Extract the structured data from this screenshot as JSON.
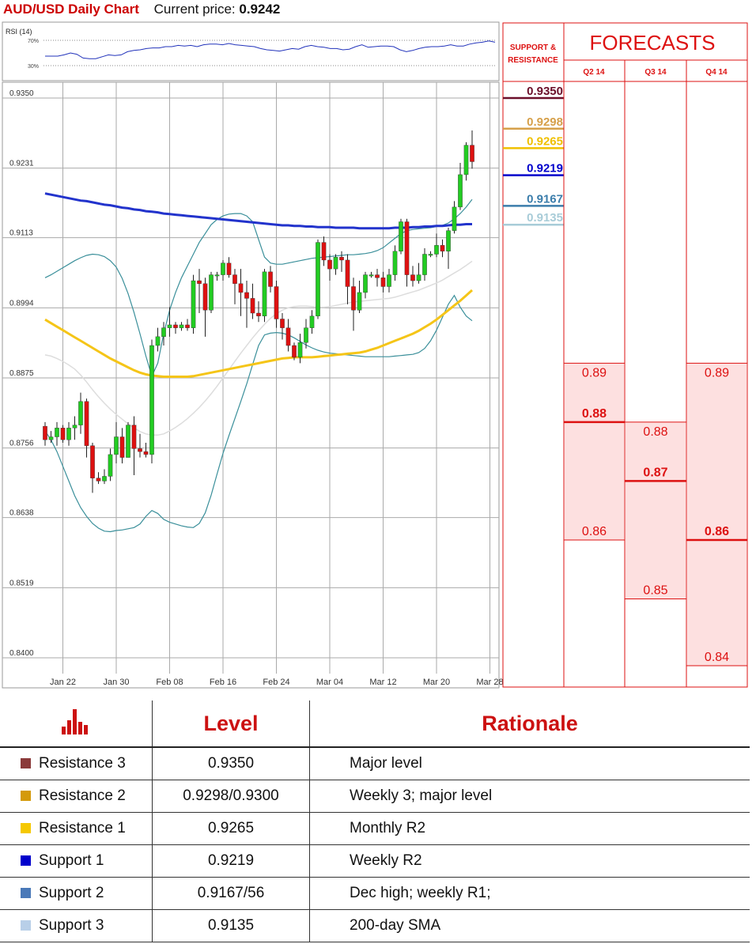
{
  "header": {
    "title": "AUD/USD Daily Chart",
    "price_label": "Current price:",
    "price_value": "0.9242"
  },
  "rsi": {
    "label": "RSI (14)",
    "upper": "70%",
    "lower": "30%",
    "values": [
      45,
      45,
      45,
      47,
      50,
      48,
      42,
      41,
      41,
      44,
      47,
      46,
      47,
      52,
      54,
      55,
      57,
      58,
      58,
      60,
      60,
      62,
      61,
      62,
      60,
      63,
      64,
      64,
      63,
      65,
      63,
      62,
      61,
      60,
      57,
      55,
      54,
      53,
      55,
      57,
      56,
      60,
      62,
      60,
      59,
      57,
      57,
      55,
      56,
      60,
      63,
      59,
      60,
      61,
      61,
      60,
      55,
      52,
      54,
      57,
      59,
      60,
      60,
      61,
      63,
      61,
      61,
      64,
      66,
      67,
      69,
      67
    ]
  },
  "chart_data": {
    "type": "candlestick",
    "title": "AUD/USD Daily Chart",
    "xlabel": "",
    "ylabel": "",
    "ylim": [
      0.84,
      0.935
    ],
    "y_ticks": [
      "0.9350",
      "0.9231",
      "0.9113",
      "0.8994",
      "0.8875",
      "0.8756",
      "0.8638",
      "0.8519",
      "0.8400"
    ],
    "x_ticks": [
      "Jan 22",
      "Jan 30",
      "Feb 08",
      "Feb 16",
      "Feb 24",
      "Mar 04",
      "Mar 12",
      "Mar 20",
      "Mar 28"
    ],
    "x_tick_index": [
      3,
      12,
      21,
      30,
      39,
      48,
      57,
      66,
      75
    ],
    "grid": true,
    "candles": [
      [
        0.8793,
        0.877,
        0.88,
        0.876
      ],
      [
        0.877,
        0.8775,
        0.8785,
        0.8765
      ],
      [
        0.8775,
        0.879,
        0.88,
        0.876
      ],
      [
        0.879,
        0.877,
        0.8795,
        0.8765
      ],
      [
        0.877,
        0.879,
        0.88,
        0.876
      ],
      [
        0.879,
        0.8795,
        0.881,
        0.877
      ],
      [
        0.8795,
        0.8835,
        0.885,
        0.878
      ],
      [
        0.8835,
        0.876,
        0.884,
        0.874
      ],
      [
        0.876,
        0.8705,
        0.8765,
        0.868
      ],
      [
        0.8705,
        0.87,
        0.8715,
        0.8695
      ],
      [
        0.87,
        0.8708,
        0.872,
        0.8695
      ],
      [
        0.8708,
        0.8745,
        0.8755,
        0.87
      ],
      [
        0.8745,
        0.8775,
        0.88,
        0.873
      ],
      [
        0.8775,
        0.874,
        0.879,
        0.873
      ],
      [
        0.874,
        0.8795,
        0.88,
        0.874
      ],
      [
        0.8795,
        0.8755,
        0.881,
        0.871
      ],
      [
        0.8755,
        0.875,
        0.878,
        0.874
      ],
      [
        0.875,
        0.8745,
        0.8765,
        0.874
      ],
      [
        0.8745,
        0.893,
        0.894,
        0.873
      ],
      [
        0.893,
        0.8945,
        0.896,
        0.892
      ],
      [
        0.8945,
        0.896,
        0.897,
        0.893
      ],
      [
        0.896,
        0.8965,
        0.8995,
        0.8945
      ],
      [
        0.8965,
        0.896,
        0.897,
        0.895
      ],
      [
        0.896,
        0.8965,
        0.897,
        0.8955
      ],
      [
        0.8965,
        0.896,
        0.8975,
        0.8955
      ],
      [
        0.896,
        0.904,
        0.905,
        0.895
      ],
      [
        0.904,
        0.9035,
        0.906,
        0.8985
      ],
      [
        0.9035,
        0.899,
        0.9045,
        0.8945
      ],
      [
        0.899,
        0.905,
        0.9055,
        0.8985
      ],
      [
        0.905,
        0.905,
        0.9055,
        0.904
      ],
      [
        0.905,
        0.907,
        0.9075,
        0.904
      ],
      [
        0.907,
        0.905,
        0.908,
        0.9045
      ],
      [
        0.905,
        0.9035,
        0.906,
        0.9
      ],
      [
        0.9035,
        0.902,
        0.906,
        0.898
      ],
      [
        0.902,
        0.901,
        0.904,
        0.896
      ],
      [
        0.901,
        0.8985,
        0.9035,
        0.8975
      ],
      [
        0.8985,
        0.898,
        0.9005,
        0.897
      ],
      [
        0.898,
        0.9055,
        0.906,
        0.897
      ],
      [
        0.9055,
        0.903,
        0.9065,
        0.902
      ],
      [
        0.903,
        0.8975,
        0.904,
        0.896
      ],
      [
        0.8975,
        0.896,
        0.8985,
        0.894
      ],
      [
        0.896,
        0.893,
        0.8975,
        0.892
      ],
      [
        0.893,
        0.891,
        0.8935,
        0.8905
      ],
      [
        0.891,
        0.8935,
        0.895,
        0.89
      ],
      [
        0.8935,
        0.896,
        0.8975,
        0.8925
      ],
      [
        0.896,
        0.898,
        0.899,
        0.895
      ],
      [
        0.898,
        0.9105,
        0.911,
        0.8975
      ],
      [
        0.9105,
        0.9075,
        0.9115,
        0.9065
      ],
      [
        0.9075,
        0.906,
        0.9085,
        0.904
      ],
      [
        0.906,
        0.908,
        0.9085,
        0.905
      ],
      [
        0.908,
        0.9075,
        0.909,
        0.9055
      ],
      [
        0.9075,
        0.903,
        0.9085,
        0.9
      ],
      [
        0.903,
        0.899,
        0.9045,
        0.8955
      ],
      [
        0.899,
        0.902,
        0.904,
        0.8985
      ],
      [
        0.902,
        0.905,
        0.9055,
        0.901
      ],
      [
        0.905,
        0.905,
        0.9055,
        0.9045
      ],
      [
        0.905,
        0.9045,
        0.906,
        0.903
      ],
      [
        0.9045,
        0.903,
        0.9055,
        0.902
      ],
      [
        0.903,
        0.905,
        0.906,
        0.902
      ],
      [
        0.905,
        0.909,
        0.91,
        0.904
      ],
      [
        0.909,
        0.914,
        0.9145,
        0.9085
      ],
      [
        0.914,
        0.905,
        0.9145,
        0.903
      ],
      [
        0.905,
        0.904,
        0.9065,
        0.903
      ],
      [
        0.904,
        0.905,
        0.907,
        0.9035
      ],
      [
        0.905,
        0.9085,
        0.9095,
        0.904
      ],
      [
        0.9085,
        0.9085,
        0.909,
        0.908
      ],
      [
        0.9085,
        0.91,
        0.912,
        0.908
      ],
      [
        0.91,
        0.909,
        0.911,
        0.908
      ],
      [
        0.909,
        0.9125,
        0.913,
        0.906
      ],
      [
        0.9125,
        0.9165,
        0.9175,
        0.912
      ],
      [
        0.9165,
        0.922,
        0.924,
        0.916
      ],
      [
        0.922,
        0.927,
        0.9275,
        0.921
      ],
      [
        0.927,
        0.9242,
        0.9295,
        0.923
      ]
    ],
    "sma_200": [
      0.9188,
      0.9186,
      0.9184,
      0.9182,
      0.918,
      0.9178,
      0.9176,
      0.9175,
      0.9173,
      0.9171,
      0.9169,
      0.9168,
      0.9166,
      0.9164,
      0.9163,
      0.9161,
      0.916,
      0.9158,
      0.9157,
      0.9156,
      0.9154,
      0.9153,
      0.9152,
      0.9151,
      0.915,
      0.9149,
      0.9148,
      0.9147,
      0.9146,
      0.9145,
      0.9144,
      0.9143,
      0.9142,
      0.9141,
      0.914,
      0.9139,
      0.9138,
      0.9137,
      0.9136,
      0.9135,
      0.9134,
      0.9134,
      0.9133,
      0.9133,
      0.9132,
      0.9132,
      0.9131,
      0.9131,
      0.9131,
      0.913,
      0.913,
      0.913,
      0.913,
      0.9129,
      0.9129,
      0.9129,
      0.9129,
      0.9129,
      0.9129,
      0.913,
      0.913,
      0.913,
      0.9131,
      0.9131,
      0.9132,
      0.9132,
      0.9133,
      0.9133,
      0.9134,
      0.9135,
      0.9135,
      0.9136,
      0.9136
    ],
    "sma_55": [
      0.8974,
      0.8968,
      0.8962,
      0.8956,
      0.895,
      0.8944,
      0.8938,
      0.8932,
      0.8926,
      0.892,
      0.8914,
      0.8908,
      0.8903,
      0.8898,
      0.8893,
      0.8888,
      0.8884,
      0.8881,
      0.8879,
      0.8878,
      0.8877,
      0.8877,
      0.8877,
      0.8877,
      0.8877,
      0.8878,
      0.888,
      0.8882,
      0.8884,
      0.8886,
      0.8888,
      0.889,
      0.8892,
      0.8894,
      0.8896,
      0.8898,
      0.89,
      0.8902,
      0.8904,
      0.8906,
      0.8908,
      0.8909,
      0.891,
      0.891,
      0.891,
      0.891,
      0.8911,
      0.8912,
      0.8913,
      0.8914,
      0.8915,
      0.8916,
      0.8917,
      0.8918,
      0.892,
      0.8923,
      0.8926,
      0.893,
      0.8934,
      0.8938,
      0.8942,
      0.8946,
      0.895,
      0.8955,
      0.8961,
      0.8967,
      0.8974,
      0.8982,
      0.899,
      0.8998,
      0.9006,
      0.9015,
      0.9024
    ],
    "sma_20": [
      0.8914,
      0.8912,
      0.8908,
      0.8903,
      0.8897,
      0.889,
      0.888,
      0.8868,
      0.8855,
      0.8843,
      0.8832,
      0.8822,
      0.8813,
      0.8805,
      0.8797,
      0.879,
      0.8784,
      0.878,
      0.8778,
      0.8778,
      0.878,
      0.8785,
      0.8791,
      0.8798,
      0.8806,
      0.8815,
      0.8825,
      0.8836,
      0.8848,
      0.8861,
      0.8875,
      0.8889,
      0.8903,
      0.8917,
      0.893,
      0.8943,
      0.8955,
      0.8966,
      0.8976,
      0.8984,
      0.899,
      0.8994,
      0.8996,
      0.8997,
      0.8997,
      0.8996,
      0.8995,
      0.8995,
      0.8996,
      0.8998,
      0.9,
      0.9002,
      0.9004,
      0.9005,
      0.9006,
      0.9007,
      0.9008,
      0.9009,
      0.901,
      0.9012,
      0.9015,
      0.9018,
      0.9021,
      0.9024,
      0.9028,
      0.9032,
      0.9036,
      0.9041,
      0.9047,
      0.9053,
      0.9059,
      0.9066,
      0.9073
    ],
    "bb_upper": [
      0.9045,
      0.905,
      0.9056,
      0.9062,
      0.9068,
      0.9074,
      0.9079,
      0.9083,
      0.9085,
      0.9084,
      0.9081,
      0.9074,
      0.9063,
      0.9044,
      0.9018,
      0.8986,
      0.895,
      0.8912,
      0.8878,
      0.89,
      0.895,
      0.899,
      0.902,
      0.9045,
      0.9065,
      0.9085,
      0.9105,
      0.912,
      0.9135,
      0.9144,
      0.915,
      0.9153,
      0.9154,
      0.9154,
      0.915,
      0.914,
      0.911,
      0.908,
      0.907,
      0.9068,
      0.9068,
      0.907,
      0.9072,
      0.9074,
      0.9076,
      0.9078,
      0.9079,
      0.908,
      0.9081,
      0.9082,
      0.9083,
      0.9084,
      0.9084,
      0.9085,
      0.9086,
      0.9088,
      0.9091,
      0.9096,
      0.9104,
      0.9112,
      0.912,
      0.9125,
      0.9127,
      0.9128,
      0.9129,
      0.913,
      0.9132,
      0.9134,
      0.9138,
      0.9145,
      0.9154,
      0.9165,
      0.9178
    ],
    "bb_lower": [
      0.8785,
      0.877,
      0.875,
      0.8725,
      0.87,
      0.8675,
      0.8655,
      0.864,
      0.8628,
      0.862,
      0.8615,
      0.8614,
      0.8616,
      0.8617,
      0.8619,
      0.8621,
      0.8627,
      0.864,
      0.865,
      0.8645,
      0.8635,
      0.863,
      0.8627,
      0.8624,
      0.8622,
      0.8621,
      0.8628,
      0.8646,
      0.8676,
      0.8712,
      0.8747,
      0.8777,
      0.8806,
      0.8835,
      0.8865,
      0.8898,
      0.893,
      0.8948,
      0.8951,
      0.8952,
      0.8951,
      0.8948,
      0.8943,
      0.8937,
      0.8931,
      0.8926,
      0.8922,
      0.8919,
      0.8917,
      0.8916,
      0.8915,
      0.8914,
      0.8913,
      0.8912,
      0.8911,
      0.8911,
      0.8911,
      0.8911,
      0.8911,
      0.8912,
      0.8913,
      0.8914,
      0.8915,
      0.8918,
      0.8925,
      0.8938,
      0.8956,
      0.8978,
      0.9,
      0.9015,
      0.8995,
      0.898,
      0.8972
    ]
  },
  "support_resistance": {
    "title_line1": "SUPPORT &",
    "title_line2": "RESISTANCE",
    "levels": [
      {
        "label": "0.9350",
        "color": "#6b0f2a",
        "value": 0.935
      },
      {
        "label": "0.9298",
        "color": "#d6a04a",
        "value": 0.9298
      },
      {
        "label": "0.9265",
        "color": "#f0c000",
        "value": 0.9265
      },
      {
        "label": "0.9219",
        "color": "#0000cc",
        "value": 0.9219
      },
      {
        "label": "0.9167",
        "color": "#3b7dab",
        "value": 0.9167
      },
      {
        "label": "0.9135",
        "color": "#a8ccd8",
        "value": 0.9135
      }
    ]
  },
  "forecasts": {
    "title": "FORECASTS",
    "columns": [
      {
        "label": "Q2 14",
        "high": "0.89",
        "mid": "0.88",
        "low": "0.86",
        "high_v": 0.89,
        "mid_v": 0.88,
        "low_v": 0.86,
        "bottom_v": 0.84
      },
      {
        "label": "Q3 14",
        "high": "0.88",
        "mid": "0.87",
        "low": "0.85",
        "high_v": 0.88,
        "mid_v": 0.87,
        "low_v": 0.85,
        "bottom_v": 0.84
      },
      {
        "label": "Q4 14",
        "high": "0.89",
        "mid": "0.86",
        "low": "0.84",
        "high_v": 0.89,
        "mid_v": 0.86,
        "low_v": 0.84,
        "bottom_v": 0.84
      }
    ]
  },
  "table": {
    "level_header": "Level",
    "rationale_header": "Rationale",
    "rows": [
      {
        "name": "Resistance 3",
        "color": "#8b3a3a",
        "level": "0.9350",
        "rationale": "Major level"
      },
      {
        "name": "Resistance 2",
        "color": "#d49a0a",
        "level": "0.9298/0.9300",
        "rationale": "Weekly 3; major level"
      },
      {
        "name": "Resistance 1",
        "color": "#f5c800",
        "level": "0.9265",
        "rationale": "Monthly R2"
      },
      {
        "name": "Support 1",
        "color": "#0000cc",
        "level": "0.9219",
        "rationale": "Weekly R2"
      },
      {
        "name": "Support 2",
        "color": "#4a79b8",
        "level": "0.9167/56",
        "rationale": "Dec high; weekly R1;"
      },
      {
        "name": "Support 3",
        "color": "#b8cfe8",
        "level": "0.9135",
        "rationale": "200-day SMA"
      }
    ]
  },
  "colors": {
    "up": "#22cc22",
    "down": "#dd1111",
    "sma_200": "#2233cc",
    "sma_55": "#f5c518",
    "bands": "#3a8f9a",
    "sma_20": "#dddddd",
    "panel_red": "#dd1111",
    "forecast_fill": "#fde0e0"
  }
}
